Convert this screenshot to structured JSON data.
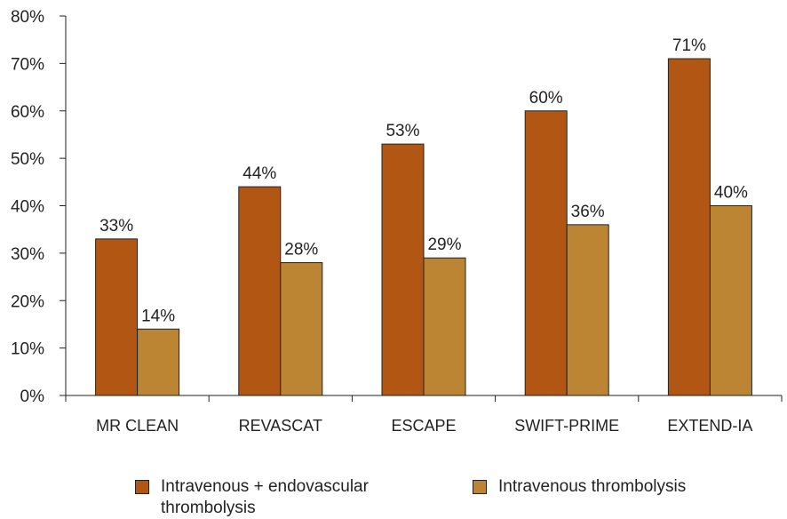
{
  "chart_data": {
    "type": "bar",
    "categories": [
      "MR CLEAN",
      "REVASCAT",
      "ESCAPE",
      "SWIFT-PRIME",
      "EXTEND-IA"
    ],
    "series": [
      {
        "name": "Intravenous + endovascular thrombolysis",
        "values": [
          33,
          44,
          53,
          60,
          71
        ],
        "labels": [
          "33%",
          "44%",
          "53%",
          "60%",
          "71%"
        ],
        "color": "#b25613"
      },
      {
        "name": "Intravenous thrombolysis",
        "values": [
          14,
          28,
          29,
          36,
          40
        ],
        "labels": [
          "14%",
          "28%",
          "29%",
          "36%",
          "40%"
        ],
        "color": "#bb8534"
      }
    ],
    "yticks": [
      "0%",
      "10%",
      "20%",
      "30%",
      "40%",
      "50%",
      "60%",
      "70%",
      "80%"
    ],
    "ylim": [
      0,
      80
    ],
    "grid": false,
    "legend_position": "bottom"
  }
}
